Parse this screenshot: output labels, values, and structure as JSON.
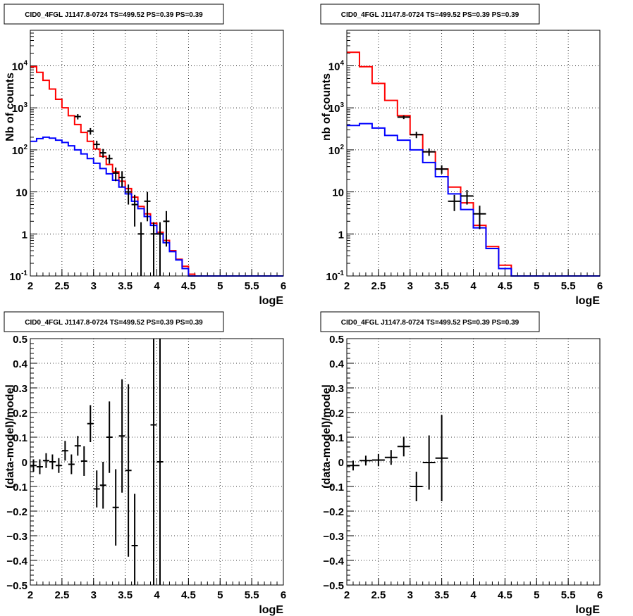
{
  "colors": {
    "model_total": "#ff0000",
    "model_background": "#0000ff",
    "data": "#000000"
  },
  "chart_data": [
    {
      "type": "line",
      "title": "CID0_4FGL J1147.8-0724 TS=499.52 PS=0.39 PS=0.39",
      "xlabel": "logE",
      "ylabel": "Nb of counts",
      "xlim": [
        2,
        6
      ],
      "ylim": [
        0.1,
        70000
      ],
      "yscale": "log",
      "grid": true,
      "x_ticks": [
        "2",
        "2.5",
        "3",
        "3.5",
        "4",
        "4.5",
        "5",
        "5.5",
        "6"
      ],
      "y_ticks": [
        "10^-1",
        "1",
        "10",
        "10^2",
        "10^3",
        "10^4"
      ],
      "bin_edges": [
        2.0,
        2.1,
        2.2,
        2.3,
        2.4,
        2.5,
        2.6,
        2.7,
        2.8,
        2.9,
        3.0,
        3.1,
        3.2,
        3.3,
        3.4,
        3.5,
        3.6,
        3.7,
        3.8,
        3.9,
        4.0,
        4.1,
        4.2,
        4.3,
        4.4,
        4.5,
        4.6,
        4.7,
        4.8,
        4.9,
        5.0,
        5.1,
        5.2,
        5.3,
        5.4,
        5.5,
        5.6,
        5.7,
        5.8,
        5.9,
        6.0
      ],
      "series": [
        {
          "kind": "step",
          "color": "#ff0000",
          "values": [
            9500,
            7000,
            4500,
            2800,
            1600,
            1000,
            650,
            400,
            260,
            160,
            105,
            70,
            45,
            30,
            18,
            12,
            7.5,
            4.5,
            3.0,
            1.8,
            1.1,
            0.7,
            0.4,
            0.25,
            0.17,
            0.11,
            0.1,
            0.1,
            0.1,
            0.1,
            0.1,
            0.1,
            0.1,
            0.1,
            0.1,
            0.1,
            0.1,
            0.1,
            0.1,
            0.1
          ]
        },
        {
          "kind": "step",
          "color": "#0000ff",
          "values": [
            160,
            185,
            200,
            190,
            170,
            150,
            125,
            100,
            80,
            62,
            48,
            36,
            27,
            19,
            13,
            9,
            6,
            4,
            2.6,
            1.6,
            1.0,
            0.62,
            0.38,
            0.24,
            0.15,
            0.1,
            0.1,
            0.1,
            0.1,
            0.1,
            0.1,
            0.1,
            0.1,
            0.1,
            0.1,
            0.1,
            0.1,
            0.1,
            0.1,
            0.1
          ]
        },
        {
          "kind": "points",
          "color": "#000000",
          "points": [
            [
              2.75,
              620,
              90
            ],
            [
              2.95,
              280,
              50
            ],
            [
              3.05,
              135,
              30
            ],
            [
              3.15,
              85,
              20
            ],
            [
              3.25,
              62,
              15
            ],
            [
              3.35,
              28,
              10
            ],
            [
              3.45,
              22,
              9
            ],
            [
              3.55,
              10,
              5
            ],
            [
              3.65,
              5,
              3.5
            ],
            [
              3.75,
              1,
              0.9
            ],
            [
              3.85,
              6,
              4
            ],
            [
              3.95,
              1,
              0.9
            ],
            [
              4.05,
              1,
              0.9
            ],
            [
              4.15,
              2,
              1.5
            ]
          ]
        }
      ]
    },
    {
      "type": "line",
      "title": "CID0_4FGL J1147.8-0724 TS=499.52 PS=0.39 PS=0.39",
      "xlabel": "logE",
      "ylabel": "nb of counts",
      "xlim": [
        2,
        6
      ],
      "ylim": [
        0.1,
        70000
      ],
      "yscale": "log",
      "grid": true,
      "x_ticks": [
        "2",
        "2.5",
        "3",
        "3.5",
        "4",
        "4.5",
        "5",
        "5.5",
        "6"
      ],
      "y_ticks": [
        "10^-1",
        "1",
        "10",
        "10^2",
        "10^3",
        "10^4"
      ],
      "bin_edges": [
        2.0,
        2.2,
        2.4,
        2.6,
        2.8,
        3.0,
        3.2,
        3.4,
        3.6,
        3.8,
        4.0,
        4.2,
        4.4,
        4.6,
        4.8,
        5.0,
        5.2,
        5.4,
        5.6,
        5.8,
        6.0
      ],
      "series": [
        {
          "kind": "step",
          "color": "#ff0000",
          "values": [
            21000,
            9500,
            3800,
            1500,
            650,
            230,
            90,
            35,
            13,
            5.5,
            1.6,
            0.5,
            0.18,
            0.1,
            0.1,
            0.1,
            0.1,
            0.1,
            0.1,
            0.1
          ]
        },
        {
          "kind": "step",
          "color": "#0000ff",
          "values": [
            380,
            420,
            330,
            220,
            170,
            100,
            50,
            23,
            9,
            3.8,
            1.4,
            0.45,
            0.15,
            0.1,
            0.1,
            0.1,
            0.1,
            0.1,
            0.1,
            0.1
          ]
        },
        {
          "kind": "points",
          "color": "#000000",
          "points": [
            [
              2.9,
              600,
              60
            ],
            [
              3.1,
              230,
              40
            ],
            [
              3.3,
              90,
              18
            ],
            [
              3.5,
              35,
              8
            ],
            [
              3.7,
              6,
              2.5
            ],
            [
              3.9,
              8,
              3
            ],
            [
              4.1,
              3,
              1.7
            ]
          ]
        }
      ]
    },
    {
      "type": "scatter",
      "title": "CID0_4FGL J1147.8-0724 TS=499.52 PS=0.39 PS=0.39",
      "xlabel": "logE",
      "ylabel": "(data-model)/model",
      "xlim": [
        2,
        6
      ],
      "ylim": [
        -0.5,
        0.5
      ],
      "grid": true,
      "x_ticks": [
        "2",
        "2.5",
        "3",
        "3.5",
        "4",
        "4.5",
        "5",
        "5.5",
        "6"
      ],
      "y_ticks": [
        "−0.5",
        "−0.4",
        "−0.3",
        "−0.2",
        "−0.1",
        "0",
        "0.1",
        "0.2",
        "0.3",
        "0.4",
        "0.5"
      ],
      "half_width": 0.05,
      "points": [
        [
          2.05,
          -0.015,
          0.025
        ],
        [
          2.15,
          -0.02,
          0.03
        ],
        [
          2.25,
          0.005,
          0.03
        ],
        [
          2.35,
          0.0,
          0.03
        ],
        [
          2.45,
          -0.015,
          0.03
        ],
        [
          2.55,
          0.045,
          0.04
        ],
        [
          2.65,
          -0.01,
          0.04
        ],
        [
          2.75,
          0.065,
          0.04
        ],
        [
          2.85,
          0.003,
          0.06
        ],
        [
          2.95,
          0.155,
          0.075
        ],
        [
          3.05,
          -0.11,
          0.075
        ],
        [
          3.15,
          -0.095,
          0.095
        ],
        [
          3.25,
          0.1,
          0.145
        ],
        [
          3.35,
          -0.185,
          0.155
        ],
        [
          3.45,
          0.105,
          0.23
        ],
        [
          3.55,
          -0.035,
          0.35
        ],
        [
          3.65,
          -0.34,
          0.21
        ],
        [
          3.95,
          0.15,
          0.9
        ],
        [
          4.05,
          0.0,
          0.9
        ]
      ]
    },
    {
      "type": "scatter",
      "title": "CID0_4FGL J1147.8-0724 TS=499.52 PS=0.39 PS=0.39",
      "xlabel": "logE",
      "ylabel": "(data-model)/model",
      "xlim": [
        2,
        6
      ],
      "ylim": [
        -0.5,
        0.5
      ],
      "grid": true,
      "x_ticks": [
        "2",
        "2.5",
        "3",
        "3.5",
        "4",
        "4.5",
        "5",
        "5.5",
        "6"
      ],
      "y_ticks": [
        "−0.5",
        "−0.4",
        "−0.3",
        "−0.2",
        "−0.1",
        "0",
        "0.1",
        "0.2",
        "0.3",
        "0.4",
        "0.5"
      ],
      "half_width": 0.1,
      "points": [
        [
          2.1,
          -0.015,
          0.02
        ],
        [
          2.3,
          0.005,
          0.02
        ],
        [
          2.5,
          0.007,
          0.025
        ],
        [
          2.7,
          0.018,
          0.03
        ],
        [
          2.9,
          0.062,
          0.04
        ],
        [
          3.1,
          -0.1,
          0.06
        ],
        [
          3.3,
          -0.003,
          0.11
        ],
        [
          3.5,
          0.015,
          0.175
        ]
      ]
    }
  ]
}
